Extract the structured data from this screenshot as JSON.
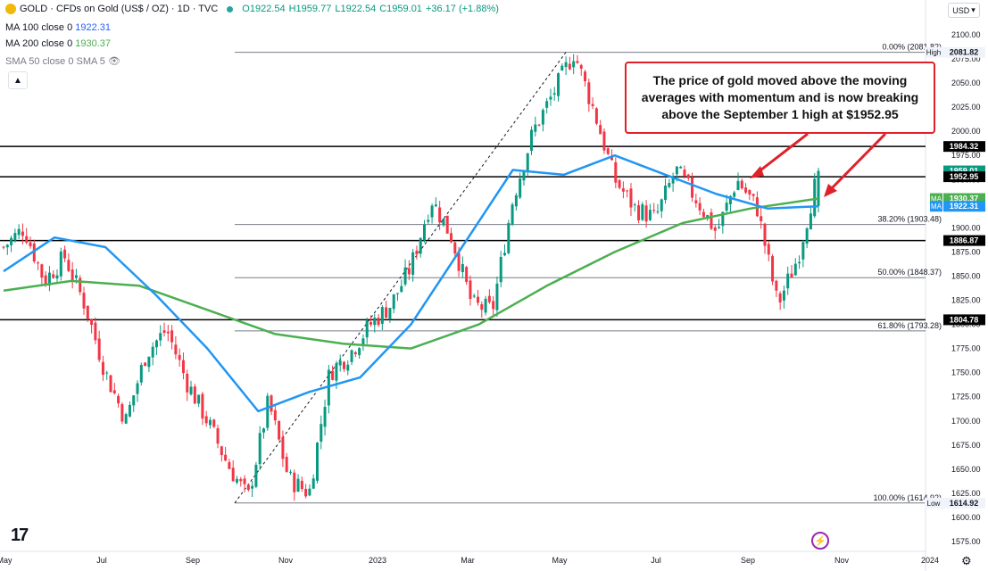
{
  "header": {
    "symbol": "GOLD · CFDs on Gold (US$ / OZ) · 1D · TVC",
    "ohlc_o": "O1922.54",
    "ohlc_h": "H1959.77",
    "ohlc_l": "L1922.54",
    "ohlc_c": "C1959.01",
    "change": "+36.17 (+1.88%)",
    "ma100_label": "MA 100 close 0",
    "ma100_value": "1922.31",
    "ma200_label": "MA 200 close 0",
    "ma200_value": "1930.37",
    "sma50_label": "SMA 50 close 0 SMA 5",
    "currency": "USD",
    "collapse_icon": "chevron-up-icon",
    "visibility_icon": "eye-off-icon"
  },
  "annotation_text": "The price of gold moved above the moving averages with momentum and is now breaking above the September 1 high at $1952.95",
  "colors": {
    "up": "#089981",
    "down": "#f23645",
    "ma100": "#2196f3",
    "ma200": "#4caf50",
    "annotation": "#e0202a",
    "fib_line": "#787b86"
  },
  "chart_data": {
    "type": "candlestick",
    "ylim": [
      1565,
      2110
    ],
    "yticks": [
      1575,
      1600,
      1625,
      1650,
      1675,
      1700,
      1725,
      1750,
      1775,
      1800,
      1825,
      1850,
      1875,
      1900,
      1925,
      1950,
      1975,
      2000,
      2025,
      2050,
      2075,
      2100
    ],
    "xticks": [
      "May",
      "Jul",
      "Sep",
      "Nov",
      "2023",
      "Mar",
      "May",
      "Jul",
      "Sep",
      "Nov",
      "2024"
    ],
    "price_path": [
      [
        "May",
        1880
      ],
      [
        "May",
        1900
      ],
      [
        "Jun",
        1845
      ],
      [
        "Jun",
        1870
      ],
      [
        "Jul",
        1820
      ],
      [
        "Jul",
        1750
      ],
      [
        "Jul",
        1700
      ],
      [
        "Aug",
        1770
      ],
      [
        "Aug",
        1795
      ],
      [
        "Aug",
        1740
      ],
      [
        "Sep",
        1700
      ],
      [
        "Sep",
        1655
      ],
      [
        "Sep",
        1620
      ],
      [
        "Oct",
        1720
      ],
      [
        "Oct",
        1640
      ],
      [
        "Nov",
        1625
      ],
      [
        "Nov",
        1750
      ],
      [
        "Nov",
        1770
      ],
      [
        "Dec",
        1800
      ],
      [
        "Dec",
        1820
      ],
      [
        "2023",
        1860
      ],
      [
        "2023",
        1930
      ],
      [
        "Feb",
        1890
      ],
      [
        "Feb",
        1820
      ],
      [
        "Mar",
        1815
      ],
      [
        "Mar",
        1930
      ],
      [
        "Apr",
        2000
      ],
      [
        "Apr",
        2040
      ],
      [
        "May",
        2081.82
      ],
      [
        "May",
        2020
      ],
      [
        "Jun",
        1950
      ],
      [
        "Jun",
        1920
      ],
      [
        "Jul",
        1910
      ],
      [
        "Jul",
        1960
      ],
      [
        "Aug",
        1930
      ],
      [
        "Aug",
        1895
      ],
      [
        "Sep",
        1950
      ],
      [
        "Sep",
        1920
      ],
      [
        "Oct",
        1820
      ],
      [
        "Oct",
        1870
      ],
      [
        "Oct",
        1959.01
      ]
    ],
    "ma100_path": [
      [
        "May",
        1855
      ],
      [
        "Jun",
        1890
      ],
      [
        "Jul",
        1880
      ],
      [
        "Aug",
        1830
      ],
      [
        "Sep",
        1775
      ],
      [
        "Nov",
        1710
      ],
      [
        "Dec",
        1730
      ],
      [
        "2023",
        1745
      ],
      [
        "Mar",
        1800
      ],
      [
        "Apr",
        1880
      ],
      [
        "May",
        1960
      ],
      [
        "Jun",
        1955
      ],
      [
        "Jul",
        1975
      ],
      [
        "Aug",
        1955
      ],
      [
        "Sep",
        1935
      ],
      [
        "Oct",
        1920
      ],
      [
        "Oct",
        1922.31
      ]
    ],
    "ma200_path": [
      [
        "May",
        1835
      ],
      [
        "Jun",
        1845
      ],
      [
        "Jul",
        1840
      ],
      [
        "Sep",
        1815
      ],
      [
        "Nov",
        1790
      ],
      [
        "2023",
        1780
      ],
      [
        "Mar",
        1775
      ],
      [
        "Apr",
        1800
      ],
      [
        "May",
        1840
      ],
      [
        "Jul",
        1875
      ],
      [
        "Aug",
        1905
      ],
      [
        "Sep",
        1920
      ],
      [
        "Oct",
        1930.37
      ]
    ],
    "fib_levels": [
      {
        "label": "0.00% (2081.82)",
        "value": 2081.82
      },
      {
        "label": "38.20% (1903.48)",
        "value": 1903.48
      },
      {
        "label": "50.00% (1848.37)",
        "value": 1848.37
      },
      {
        "label": "61.80% (1793.28)",
        "value": 1793.28
      },
      {
        "label": "100.00% (1614.92)",
        "value": 1614.92
      }
    ],
    "horizontal_levels": [
      1984.32,
      1952.95,
      1886.87,
      1804.78
    ],
    "price_labels": [
      {
        "text": "2081.82",
        "value": 2081.82,
        "tag": "High"
      },
      {
        "text": "1984.32",
        "value": 1984.32
      },
      {
        "text": "1959.01",
        "value": 1959.01,
        "tag": "last"
      },
      {
        "text": "1952.95",
        "value": 1952.95
      },
      {
        "text": "1930.37",
        "value": 1930.37,
        "tag": "MA"
      },
      {
        "text": "1922.31",
        "value": 1922.31,
        "tag": "MA"
      },
      {
        "text": "1886.87",
        "value": 1886.87
      },
      {
        "text": "1804.78",
        "value": 1804.78
      },
      {
        "text": "1614.92",
        "value": 1614.92,
        "tag": "Low"
      }
    ]
  }
}
